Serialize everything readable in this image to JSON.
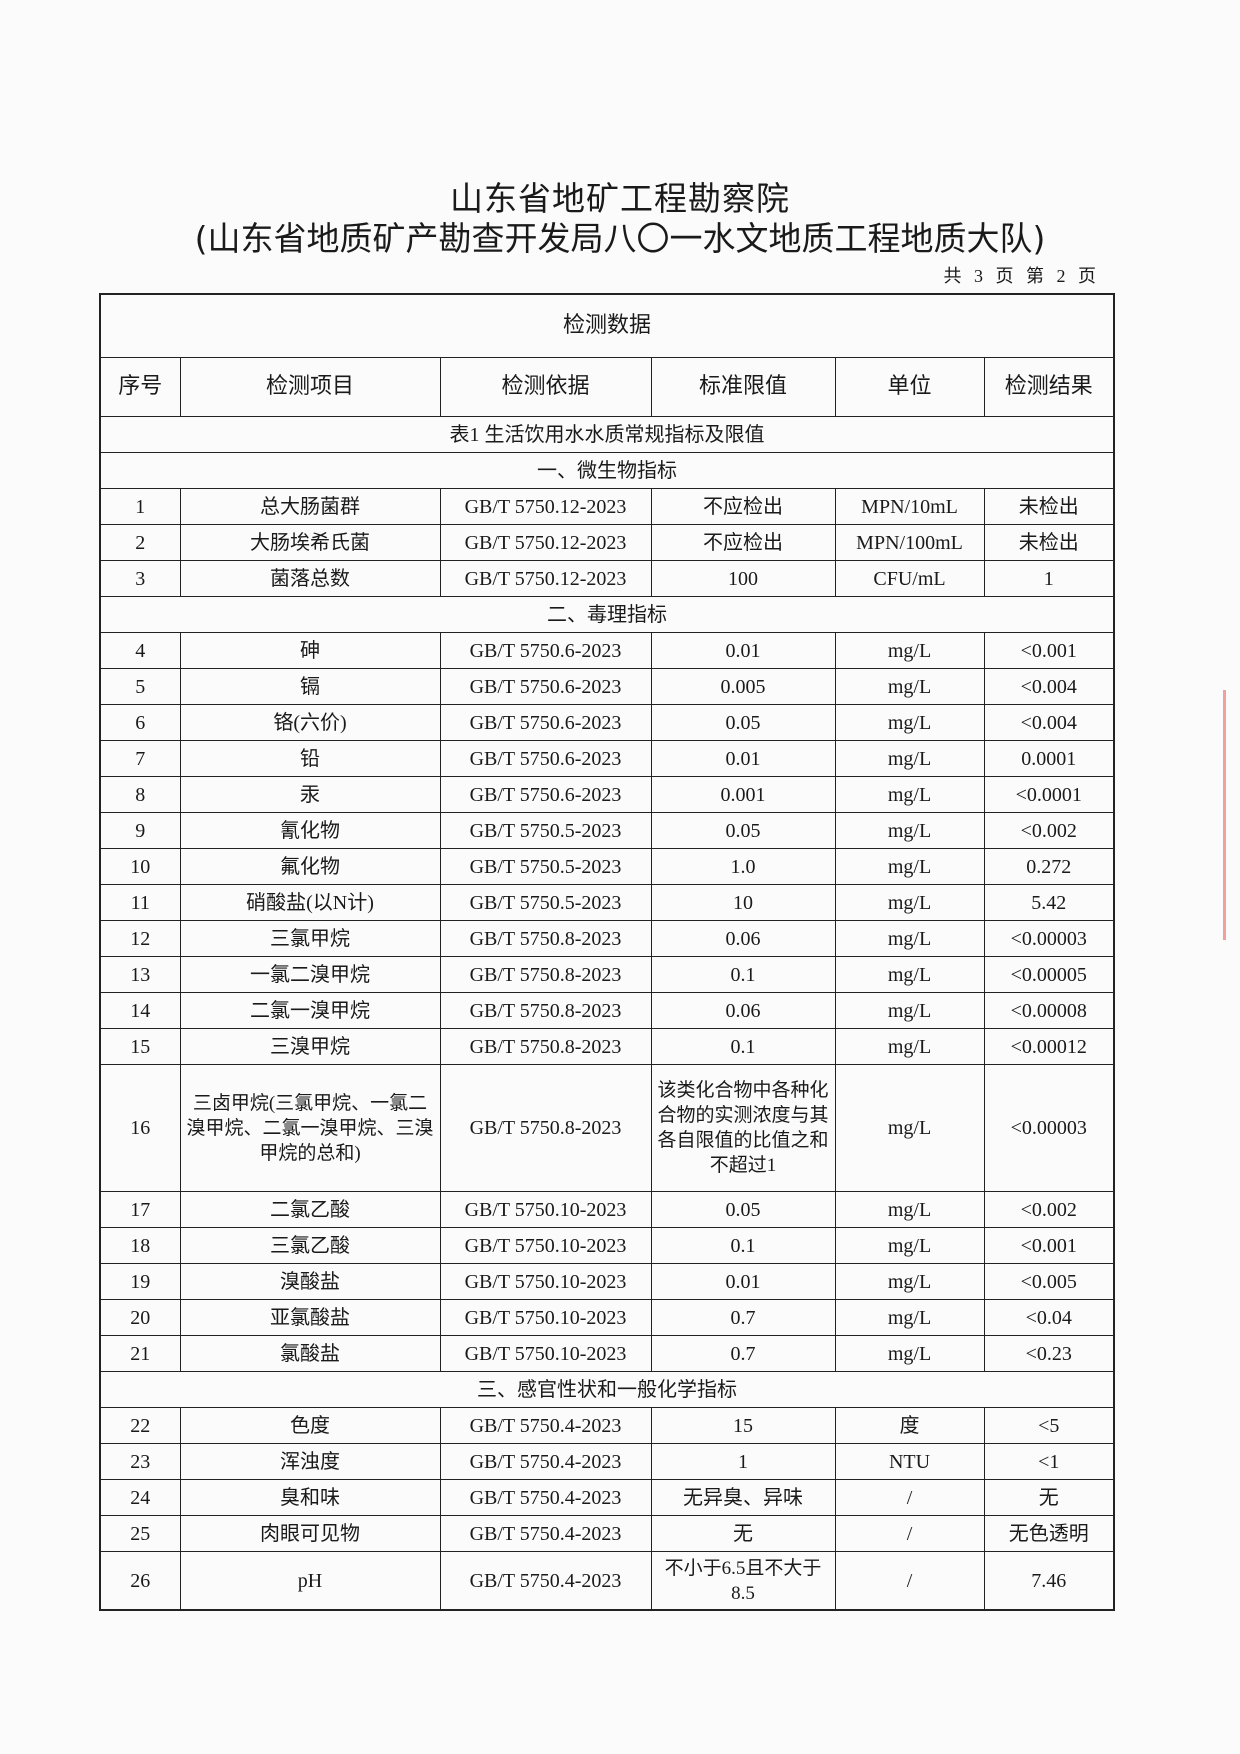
{
  "header": {
    "title": "山东省地矿工程勘察院",
    "subtitle": "(山东省地质矿产勘查开发局八〇一水文地质工程地质大队)",
    "page_info": "共 3 页 第 2 页"
  },
  "table": {
    "caption": "检测数据",
    "columns": [
      "序号",
      "检测项目",
      "检测依据",
      "标准限值",
      "单位",
      "检测结果"
    ],
    "table_title": "表1 生活饮用水水质常规指标及限值",
    "sections": [
      {
        "title": "一、微生物指标",
        "rows": [
          [
            "1",
            "总大肠菌群",
            "GB/T 5750.12-2023",
            "不应检出",
            "MPN/10mL",
            "未检出"
          ],
          [
            "2",
            "大肠埃希氏菌",
            "GB/T 5750.12-2023",
            "不应检出",
            "MPN/100mL",
            "未检出"
          ],
          [
            "3",
            "菌落总数",
            "GB/T 5750.12-2023",
            "100",
            "CFU/mL",
            "1"
          ]
        ]
      },
      {
        "title": "二、毒理指标",
        "rows": [
          [
            "4",
            "砷",
            "GB/T 5750.6-2023",
            "0.01",
            "mg/L",
            "<0.001"
          ],
          [
            "5",
            "镉",
            "GB/T 5750.6-2023",
            "0.005",
            "mg/L",
            "<0.004"
          ],
          [
            "6",
            "铬(六价)",
            "GB/T 5750.6-2023",
            "0.05",
            "mg/L",
            "<0.004"
          ],
          [
            "7",
            "铅",
            "GB/T 5750.6-2023",
            "0.01",
            "mg/L",
            "0.0001"
          ],
          [
            "8",
            "汞",
            "GB/T 5750.6-2023",
            "0.001",
            "mg/L",
            "<0.0001"
          ],
          [
            "9",
            "氰化物",
            "GB/T 5750.5-2023",
            "0.05",
            "mg/L",
            "<0.002"
          ],
          [
            "10",
            "氟化物",
            "GB/T 5750.5-2023",
            "1.0",
            "mg/L",
            "0.272"
          ],
          [
            "11",
            "硝酸盐(以N计)",
            "GB/T 5750.5-2023",
            "10",
            "mg/L",
            "5.42"
          ],
          [
            "12",
            "三氯甲烷",
            "GB/T 5750.8-2023",
            "0.06",
            "mg/L",
            "<0.00003"
          ],
          [
            "13",
            "一氯二溴甲烷",
            "GB/T 5750.8-2023",
            "0.1",
            "mg/L",
            "<0.00005"
          ],
          [
            "14",
            "二氯一溴甲烷",
            "GB/T 5750.8-2023",
            "0.06",
            "mg/L",
            "<0.00008"
          ],
          [
            "15",
            "三溴甲烷",
            "GB/T 5750.8-2023",
            "0.1",
            "mg/L",
            "<0.00012"
          ],
          [
            "16",
            "三卤甲烷(三氯甲烷、一氯二溴甲烷、二氯一溴甲烷、三溴甲烷的总和)",
            "GB/T 5750.8-2023",
            "该类化合物中各种化合物的实测浓度与其各自限值的比值之和不超过1",
            "mg/L",
            "<0.00003"
          ],
          [
            "17",
            "二氯乙酸",
            "GB/T 5750.10-2023",
            "0.05",
            "mg/L",
            "<0.002"
          ],
          [
            "18",
            "三氯乙酸",
            "GB/T 5750.10-2023",
            "0.1",
            "mg/L",
            "<0.001"
          ],
          [
            "19",
            "溴酸盐",
            "GB/T 5750.10-2023",
            "0.01",
            "mg/L",
            "<0.005"
          ],
          [
            "20",
            "亚氯酸盐",
            "GB/T 5750.10-2023",
            "0.7",
            "mg/L",
            "<0.04"
          ],
          [
            "21",
            "氯酸盐",
            "GB/T 5750.10-2023",
            "0.7",
            "mg/L",
            "<0.23"
          ]
        ]
      },
      {
        "title": "三、感官性状和一般化学指标",
        "rows": [
          [
            "22",
            "色度",
            "GB/T 5750.4-2023",
            "15",
            "度",
            "<5"
          ],
          [
            "23",
            "浑浊度",
            "GB/T 5750.4-2023",
            "1",
            "NTU",
            "<1"
          ],
          [
            "24",
            "臭和味",
            "GB/T 5750.4-2023",
            "无异臭、异味",
            "/",
            "无"
          ],
          [
            "25",
            "肉眼可见物",
            "GB/T 5750.4-2023",
            "无",
            "/",
            "无色透明"
          ],
          [
            "26",
            "pH",
            "GB/T 5750.4-2023",
            "不小于6.5且不大于8.5",
            "/",
            "7.46"
          ]
        ]
      }
    ]
  },
  "colors": {
    "stamp": "#e8463c"
  }
}
